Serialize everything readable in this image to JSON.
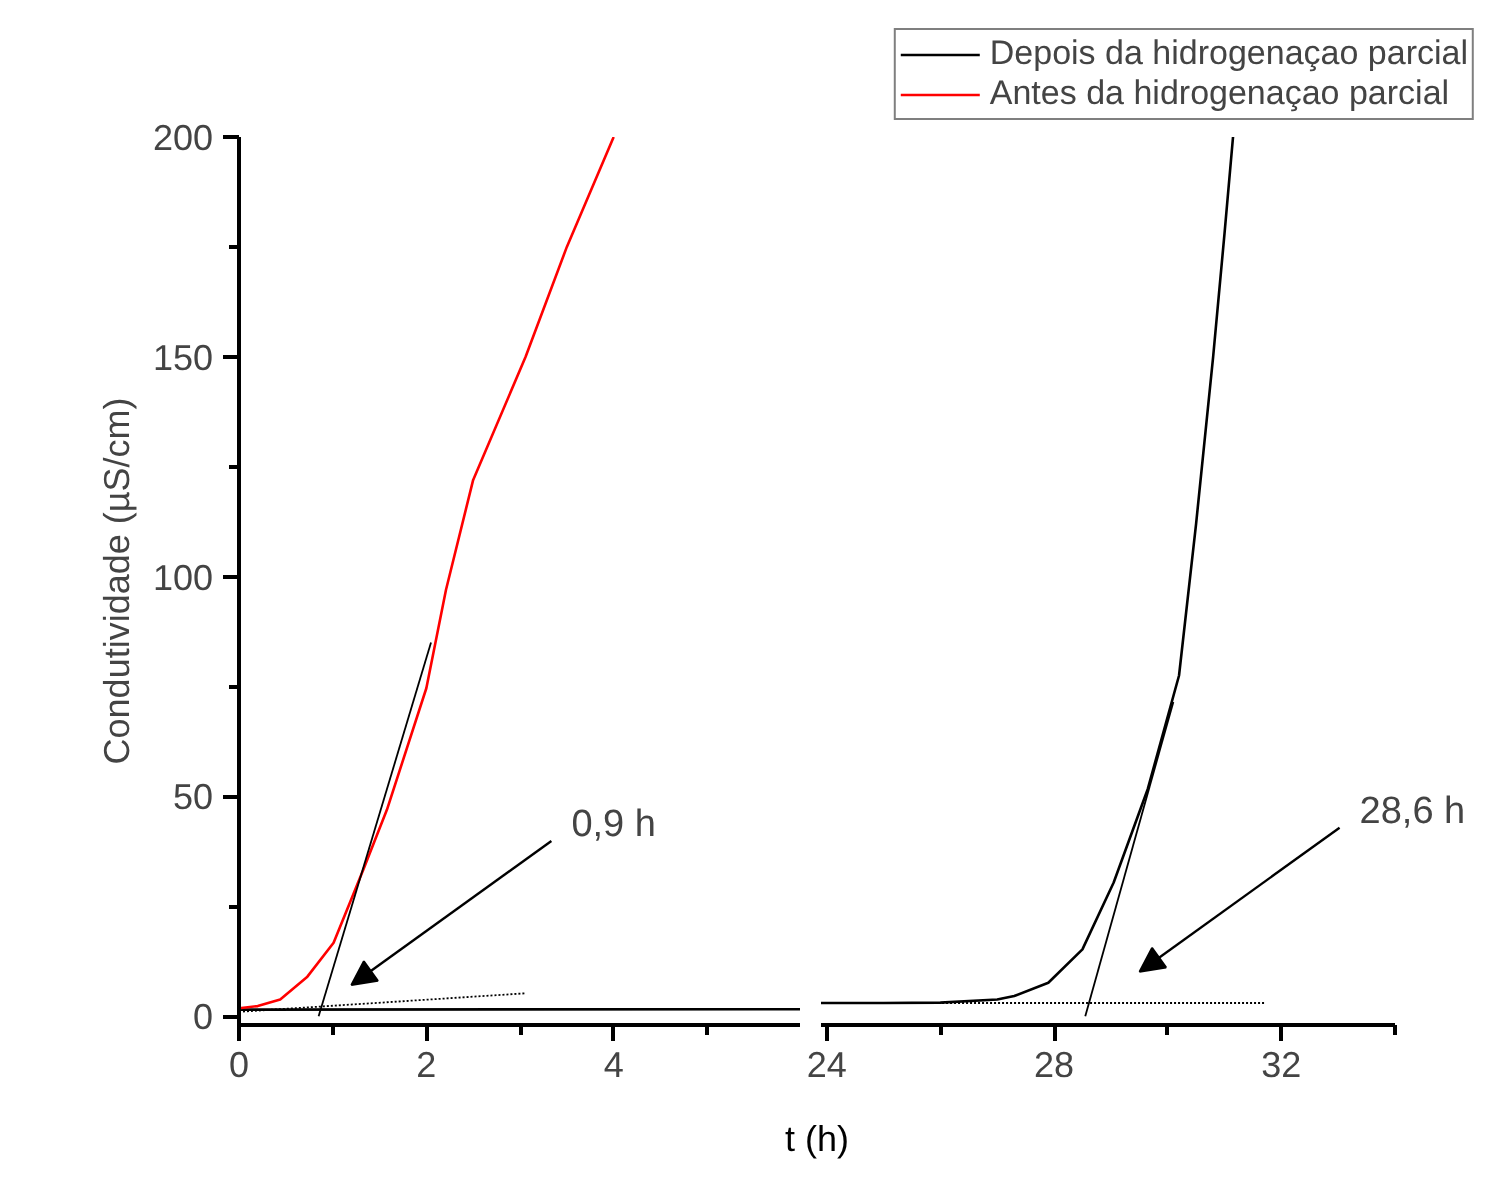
{
  "chart_data": [
    {
      "type": "line",
      "xlabel": "t (h)",
      "ylabel": "Condutividade (µS/cm)",
      "xlim": [
        0,
        6
      ],
      "ylim": [
        -2,
        200
      ],
      "xticks": [
        0,
        2,
        4
      ],
      "yticks": [
        0,
        50,
        100,
        150,
        200
      ],
      "legend": "top right",
      "series": [
        {
          "name": "Depois da hidrogenaçao parcial",
          "color": "#000000",
          "x": [
            0,
            6
          ],
          "values": [
            1.5,
            1.6
          ]
        },
        {
          "name": "Antes da hidrogenaçao parcial",
          "color": "#ff0000",
          "x": [
            0,
            0.2,
            0.44,
            0.73,
            1.01,
            1.33,
            1.58,
            2.0,
            2.21,
            2.5,
            3.06,
            3.5,
            4.0
          ],
          "values": [
            1.8,
            2.3,
            3.8,
            9,
            16.7,
            33.5,
            47,
            74.6,
            97,
            122,
            150,
            175,
            200
          ]
        },
        {
          "color": "#000000",
          "x": [
            0.85,
            2.05
          ],
          "values": [
            0,
            85
          ]
        },
        {
          "color": "#000000",
          "line_style": "dotted",
          "x": [
            0,
            3.05
          ],
          "values": [
            1,
            5.2
          ]
        }
      ],
      "annotations": [
        "0,9 h"
      ]
    },
    {
      "type": "line",
      "xlim": [
        23.9,
        34
      ],
      "ylim": [
        -2,
        200
      ],
      "xticks": [
        24,
        28,
        32
      ],
      "tick_labels": "x",
      "series": [
        {
          "color": "#000000",
          "x": [
            23.9,
            25,
            26,
            27,
            27.3,
            27.9,
            28.5,
            29.05,
            29.65,
            30.2,
            30.5,
            30.8,
            31.0,
            31.15
          ],
          "values": [
            3,
            3,
            3.1,
            3.8,
            4.6,
            7.6,
            15.2,
            30.4,
            51.7,
            77.5,
            112,
            150,
            178,
            200
          ]
        },
        {
          "color": "#000000",
          "x": [
            28.55,
            30.1
          ],
          "values": [
            0,
            71.5
          ]
        },
        {
          "color": "#000000",
          "line_style": "dotted",
          "x": [
            24.2,
            31.7
          ],
          "values": [
            3,
            3
          ]
        }
      ],
      "annotations": [
        "28,6 h"
      ]
    }
  ]
}
